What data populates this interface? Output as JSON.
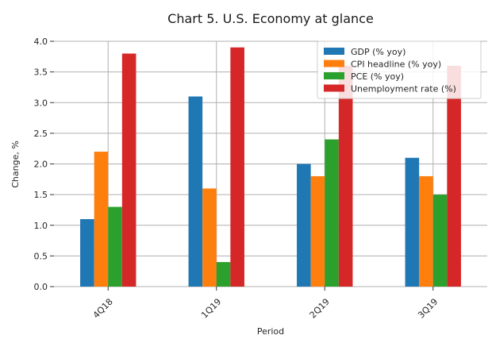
{
  "chart_data": {
    "type": "bar",
    "title": "Chart 5. U.S. Economy at glance",
    "xlabel": "Period",
    "ylabel": "Change, %",
    "ylim": [
      0,
      4.0
    ],
    "yticks": [
      "0.0",
      "0.5",
      "1.0",
      "1.5",
      "2.0",
      "2.5",
      "3.0",
      "3.5",
      "4.0"
    ],
    "ytick_values": [
      0,
      0.5,
      1.0,
      1.5,
      2.0,
      2.5,
      3.0,
      3.5,
      4.0
    ],
    "categories": [
      "4Q18",
      "1Q19",
      "2Q19",
      "3Q19"
    ],
    "grid": true,
    "legend_position": "top-right",
    "series": [
      {
        "name": "GDP (% yoy)",
        "color": "#1f77b4",
        "values": [
          1.1,
          3.1,
          2.0,
          2.1
        ]
      },
      {
        "name": "CPI headline (% yoy)",
        "color": "#ff7f0e",
        "values": [
          2.2,
          1.6,
          1.8,
          1.8
        ]
      },
      {
        "name": "PCE (% yoy)",
        "color": "#2ca02c",
        "values": [
          1.3,
          0.4,
          2.4,
          1.5
        ]
      },
      {
        "name": "Unemployment rate (%)",
        "color": "#d62728",
        "values": [
          3.8,
          3.9,
          3.6,
          3.6
        ]
      }
    ]
  }
}
